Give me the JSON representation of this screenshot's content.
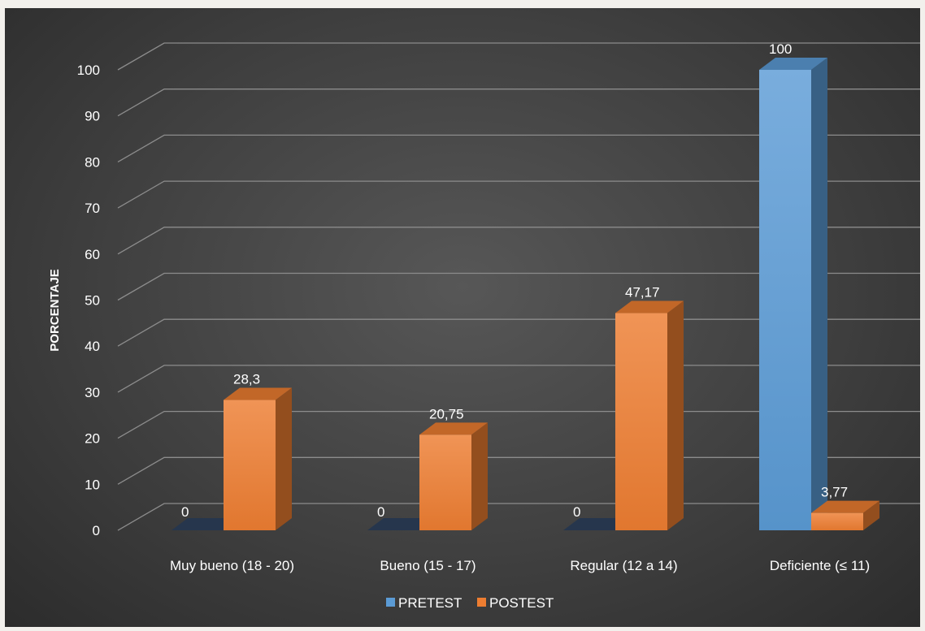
{
  "chart_data": {
    "type": "bar",
    "ylabel": "PORCENTAJE",
    "ylim": [
      0,
      100
    ],
    "yticks": [
      0,
      10,
      20,
      30,
      40,
      50,
      60,
      70,
      80,
      90,
      100
    ],
    "grid": true,
    "legend_position": "bottom",
    "categories": [
      "Muy bueno (18 - 20)",
      "Bueno (15 - 17)",
      "Regular (12 a 14)",
      "Deficiente (≤ 11)"
    ],
    "series": [
      {
        "name": "PRETEST",
        "values": [
          0,
          0,
          0,
          100
        ],
        "labels": [
          "0",
          "0",
          "0",
          "100"
        ],
        "color": "#5b9bd5"
      },
      {
        "name": "POSTEST",
        "values": [
          28.3,
          20.75,
          47.17,
          3.77
        ],
        "labels": [
          "28,3",
          "20,75",
          "47,17",
          "3,77"
        ],
        "color": "#ed7d31"
      }
    ]
  },
  "colors": {
    "background": "#404040",
    "gridline": "#8c8c8c",
    "text": "#ffffff"
  }
}
